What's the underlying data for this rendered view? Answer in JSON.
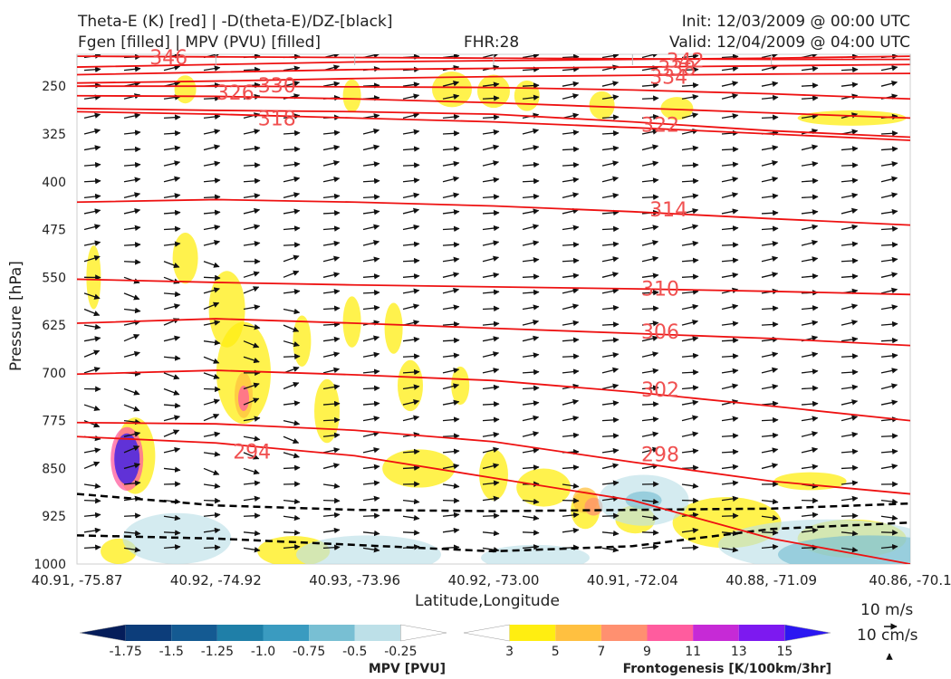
{
  "header": {
    "title_line1": "Theta-E (K) [red] | -D(theta-E)/DZ-[black]",
    "title_line2": "Fgen [filled] | MPV (PVU) [filled]",
    "fhr": "FHR:28",
    "init": "Init: 12/03/2009 @ 00:00 UTC",
    "valid": "Valid: 12/04/2009 @ 04:00 UTC"
  },
  "chart_data": {
    "type": "cross-section",
    "xlabel": "Latitude,Longitude",
    "ylabel": "Pressure [hPa]",
    "x_ticks": [
      "40.91, -75.87",
      "40.92, -74.92",
      "40.93, -73.96",
      "40.92, -73.00",
      "40.91, -72.04",
      "40.88, -71.09",
      "40.86, -70.1"
    ],
    "y_ticks": [
      "250",
      "325",
      "400",
      "475",
      "550",
      "625",
      "700",
      "775",
      "850",
      "925",
      "1000"
    ],
    "ylim": [
      1000,
      200
    ],
    "theta_e_contours": [
      {
        "label": "346",
        "p": [
          203,
          204,
          205,
          206,
          207,
          208,
          208
        ],
        "label_x": 0.11,
        "label_p": 204
      },
      {
        "label": "342",
        "p": [
          220,
          216,
          212,
          210,
          208,
          206,
          203
        ],
        "label_x": 0.73,
        "label_p": 209
      },
      {
        "label": "338",
        "p": [
          232,
          228,
          224,
          222,
          220,
          218,
          216
        ],
        "label_x": 0.72,
        "label_p": 221
      },
      {
        "label": "334",
        "p": [
          245,
          242,
          238,
          235,
          233,
          231,
          230
        ],
        "label_x": 0.71,
        "label_p": 235
      },
      {
        "label": "330",
        "p": [
          250,
          250,
          251,
          252,
          256,
          262,
          270
        ],
        "label_x": 0.24,
        "label_p": 248
      },
      {
        "label": "326",
        "p": [
          265,
          266,
          270,
          276,
          284,
          292,
          300
        ],
        "label_x": 0.19,
        "label_p": 260
      },
      {
        "label": "318",
        "p": [
          290,
          294,
          300,
          306,
          315,
          325,
          335
        ],
        "label_x": 0.24,
        "label_p": 300
      },
      {
        "label": "322",
        "p": [
          285,
          288,
          290,
          294,
          306,
          320,
          330
        ],
        "label_x": 0.7,
        "label_p": 310
      },
      {
        "label": "314",
        "p": [
          432,
          428,
          432,
          438,
          447,
          458,
          468
        ],
        "label_x": 0.71,
        "label_p": 443
      },
      {
        "label": "310",
        "p": [
          553,
          558,
          562,
          565,
          568,
          572,
          577
        ],
        "label_x": 0.7,
        "label_p": 567
      },
      {
        "label": "306",
        "p": [
          622,
          615,
          622,
          630,
          638,
          646,
          657
        ],
        "label_x": 0.7,
        "label_p": 635
      },
      {
        "label": "302",
        "p": [
          702,
          696,
          703,
          712,
          730,
          752,
          775
        ],
        "label_x": 0.7,
        "label_p": 726
      },
      {
        "label": "298",
        "p": [
          778,
          780,
          790,
          808,
          840,
          870,
          890
        ],
        "label_x": 0.7,
        "label_p": 827
      },
      {
        "label": "294",
        "p": [
          800,
          810,
          830,
          865,
          900,
          960,
          1000
        ],
        "label_x": 0.21,
        "label_p": 823
      }
    ],
    "dtheta_dashed": [
      {
        "p": [
          890,
          908,
          915,
          917,
          915,
          913,
          905
        ]
      },
      {
        "p": [
          955,
          960,
          970,
          980,
          972,
          945,
          935
        ]
      }
    ],
    "colorbar_mpv": {
      "title": "MPV [PVU]",
      "ticks": [
        "-1.75",
        "-1.5",
        "-1.25",
        "-1.0",
        "-0.75",
        "-0.5",
        "-0.25"
      ],
      "colors": [
        "#051d5a",
        "#0c3d7a",
        "#145a92",
        "#1f7fa8",
        "#3a9bc0",
        "#78bfd3",
        "#bde0e8",
        "#ffffff"
      ]
    },
    "colorbar_fgen": {
      "title": "Frontogenesis [K/100km/3hr]",
      "ticks": [
        "3",
        "5",
        "7",
        "9",
        "11",
        "13",
        "15"
      ],
      "colors": [
        "#ffffff",
        "#ffee11",
        "#ffc040",
        "#ff9070",
        "#ff5c9e",
        "#c62ad6",
        "#7d19f0",
        "#2b17f2"
      ]
    },
    "vector_key": {
      "line1": "10 m/s",
      "line2": "10 cm/s"
    }
  }
}
